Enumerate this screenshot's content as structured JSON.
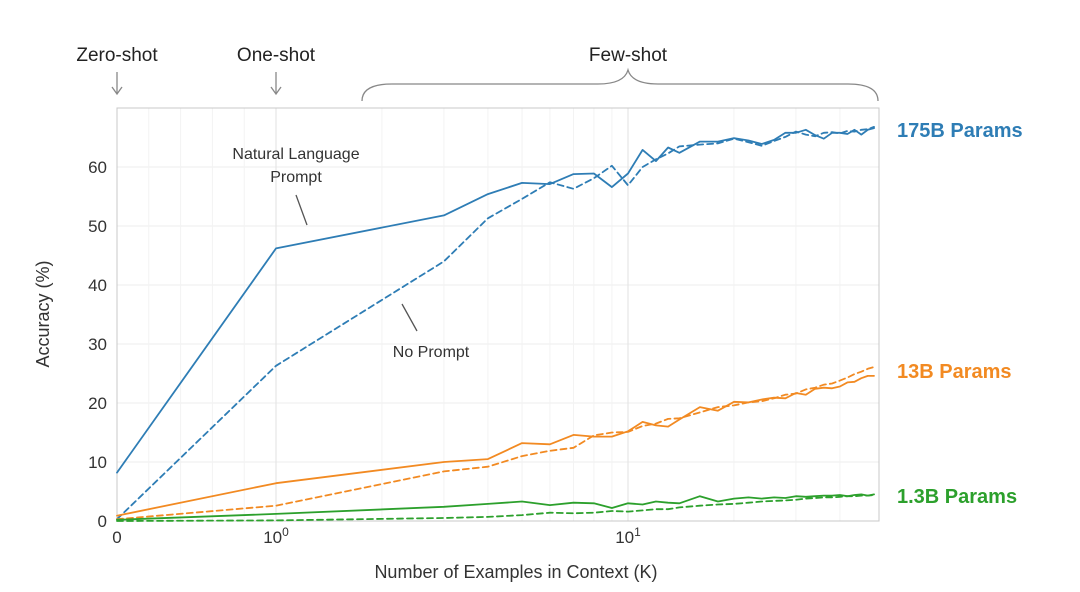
{
  "chart_data": {
    "type": "line",
    "xlabel": "Number of Examples in Context  (K)",
    "ylabel": "Accuracy (%)",
    "xscale": "symlog",
    "xlim": [
      0,
      50
    ],
    "ylim": [
      0,
      70
    ],
    "yticks": [
      "0",
      "10",
      "20",
      "30",
      "40",
      "50",
      "60"
    ],
    "xticks": [
      {
        "value": 0,
        "base": "0",
        "exp": ""
      },
      {
        "value": 1,
        "base": "10",
        "exp": "0"
      },
      {
        "value": 10,
        "base": "10",
        "exp": "1"
      }
    ],
    "grid": true,
    "shot_labels": {
      "zero": "Zero-shot",
      "one": "One-shot",
      "few": "Few-shot"
    },
    "callouts": {
      "natural_language_line1": "Natural Language",
      "natural_language_line2": "Prompt",
      "no_prompt": "No Prompt"
    },
    "groups": [
      {
        "label": "175B Params",
        "color": "#2e7db5",
        "series": [
          {
            "style": "solid",
            "x": [
              0,
              1,
              3,
              4,
              5,
              6,
              7,
              8,
              9,
              10,
              11,
              12,
              13,
              14,
              16,
              18,
              20,
              22,
              24,
              26,
              28,
              30,
              32,
              34,
              36,
              38,
              40,
              42,
              44,
              46,
              48,
              50
            ],
            "y": [
              8.2,
              46.2,
              51.8,
              55.4,
              57.3,
              57.1,
              58.8,
              58.9,
              56.6,
              58.9,
              62.9,
              61.0,
              63.3,
              62.4,
              64.3,
              64.3,
              64.9,
              64.5,
              63.9,
              64.6,
              65.8,
              65.8,
              66.3,
              65.4,
              64.8,
              65.8,
              65.8,
              65.6,
              66.3,
              65.5,
              66.3,
              66.6
            ]
          },
          {
            "style": "dashed",
            "x": [
              0,
              1,
              3,
              4,
              5,
              6,
              7,
              8,
              9,
              10,
              11,
              12,
              13,
              14,
              16,
              18,
              20,
              22,
              24,
              26,
              28,
              30,
              32,
              34,
              36,
              38,
              40,
              42,
              44,
              46,
              48,
              50
            ],
            "y": [
              0.3,
              26.3,
              44.0,
              51.3,
              54.6,
              57.4,
              56.3,
              58.1,
              60.2,
              56.9,
              60.0,
              61.3,
              62.3,
              63.5,
              63.8,
              64.0,
              64.8,
              64.2,
              63.6,
              64.4,
              65.1,
              66.0,
              65.5,
              65.2,
              65.8,
              65.9,
              65.7,
              66.1,
              66.0,
              66.3,
              66.4,
              66.8
            ]
          }
        ]
      },
      {
        "label": "13B Params",
        "color": "#f28a22",
        "series": [
          {
            "style": "solid",
            "x": [
              0,
              1,
              3,
              4,
              5,
              6,
              7,
              8,
              9,
              10,
              11,
              12,
              13,
              14,
              16,
              18,
              20,
              22,
              24,
              26,
              28,
              30,
              32,
              34,
              36,
              38,
              40,
              42,
              44,
              46,
              48,
              50
            ],
            "y": [
              0.9,
              6.4,
              10.0,
              10.5,
              13.2,
              13.0,
              14.6,
              14.3,
              14.3,
              15.2,
              16.8,
              16.2,
              16.0,
              17.2,
              19.3,
              18.7,
              20.2,
              20.1,
              20.6,
              20.9,
              20.8,
              21.7,
              21.4,
              22.4,
              22.6,
              22.5,
              22.8,
              23.5,
              23.6,
              24.2,
              24.6,
              24.6
            ]
          },
          {
            "style": "dashed",
            "x": [
              0,
              1,
              3,
              4,
              5,
              6,
              7,
              8,
              9,
              10,
              11,
              12,
              13,
              14,
              16,
              18,
              20,
              22,
              24,
              26,
              28,
              30,
              32,
              34,
              36,
              38,
              40,
              42,
              44,
              46,
              48,
              50
            ],
            "y": [
              0.3,
              2.6,
              8.4,
              9.2,
              11.0,
              11.9,
              12.4,
              14.5,
              15.0,
              15.1,
              16.1,
              16.5,
              17.3,
              17.4,
              18.4,
              19.3,
              19.6,
              20.1,
              20.3,
              20.8,
              21.4,
              21.6,
              22.3,
              22.6,
              23.1,
              23.3,
              23.8,
              24.3,
              24.9,
              25.3,
              25.8,
              26.1
            ]
          }
        ]
      },
      {
        "label": "1.3B Params",
        "color": "#2ca02c",
        "series": [
          {
            "style": "solid",
            "x": [
              0,
              1,
              3,
              4,
              5,
              6,
              7,
              8,
              9,
              10,
              11,
              12,
              13,
              14,
              16,
              18,
              20,
              22,
              24,
              26,
              28,
              30,
              32,
              34,
              36,
              38,
              40,
              42,
              44,
              46,
              48,
              50
            ],
            "y": [
              0.2,
              1.2,
              2.4,
              2.9,
              3.3,
              2.7,
              3.1,
              3.0,
              2.2,
              3.0,
              2.8,
              3.3,
              3.1,
              3.0,
              4.2,
              3.3,
              3.8,
              4.0,
              3.8,
              4.0,
              3.9,
              4.2,
              4.1,
              4.2,
              4.3,
              4.3,
              4.4,
              4.2,
              4.4,
              4.5,
              4.3,
              4.5
            ]
          },
          {
            "style": "dashed",
            "x": [
              0,
              1,
              3,
              4,
              5,
              6,
              7,
              8,
              9,
              10,
              11,
              12,
              13,
              14,
              16,
              18,
              20,
              22,
              24,
              26,
              28,
              30,
              32,
              34,
              36,
              38,
              40,
              42,
              44,
              46,
              48,
              50
            ],
            "y": [
              0.0,
              0.1,
              0.5,
              0.7,
              1.0,
              1.4,
              1.3,
              1.4,
              1.7,
              1.6,
              1.8,
              2.0,
              2.0,
              2.3,
              2.6,
              2.8,
              2.9,
              3.1,
              3.3,
              3.4,
              3.5,
              3.6,
              3.8,
              3.9,
              4.0,
              4.0,
              4.1,
              4.2,
              4.2,
              4.3,
              4.3,
              4.4
            ]
          }
        ]
      }
    ]
  }
}
